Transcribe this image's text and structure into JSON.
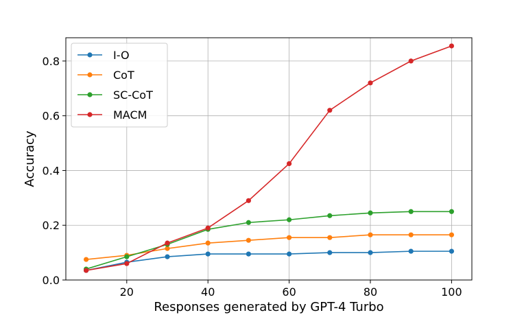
{
  "chart_data": {
    "type": "line",
    "title": "",
    "xlabel": "Responses generated by GPT-4 Turbo",
    "ylabel": "Accuracy",
    "xlim": [
      5,
      105
    ],
    "ylim": [
      0.0,
      0.885
    ],
    "xticks": [
      20,
      40,
      60,
      80,
      100
    ],
    "xtick_labels": [
      "20",
      "40",
      "60",
      "80",
      "100"
    ],
    "yticks": [
      0.0,
      0.2,
      0.4,
      0.6,
      0.8
    ],
    "ytick_labels": [
      "0.0",
      "0.2",
      "0.4",
      "0.6",
      "0.8"
    ],
    "grid": true,
    "legend_position": "top-left",
    "x": [
      10,
      20,
      30,
      40,
      50,
      60,
      70,
      80,
      90,
      100
    ],
    "series": [
      {
        "name": "I-O",
        "color": "#1f77b4",
        "values": [
          0.035,
          0.065,
          0.085,
          0.095,
          0.095,
          0.095,
          0.1,
          0.1,
          0.105,
          0.105
        ]
      },
      {
        "name": "CoT",
        "color": "#ff7f0e",
        "values": [
          0.075,
          0.09,
          0.115,
          0.135,
          0.145,
          0.155,
          0.155,
          0.165,
          0.165,
          0.165
        ]
      },
      {
        "name": "SC-CoT",
        "color": "#2ca02c",
        "values": [
          0.04,
          0.085,
          0.13,
          0.185,
          0.21,
          0.22,
          0.235,
          0.245,
          0.25,
          0.25
        ]
      },
      {
        "name": "MACM",
        "color": "#d62728",
        "values": [
          0.035,
          0.06,
          0.135,
          0.19,
          0.29,
          0.425,
          0.62,
          0.72,
          0.8,
          0.855
        ]
      }
    ]
  }
}
